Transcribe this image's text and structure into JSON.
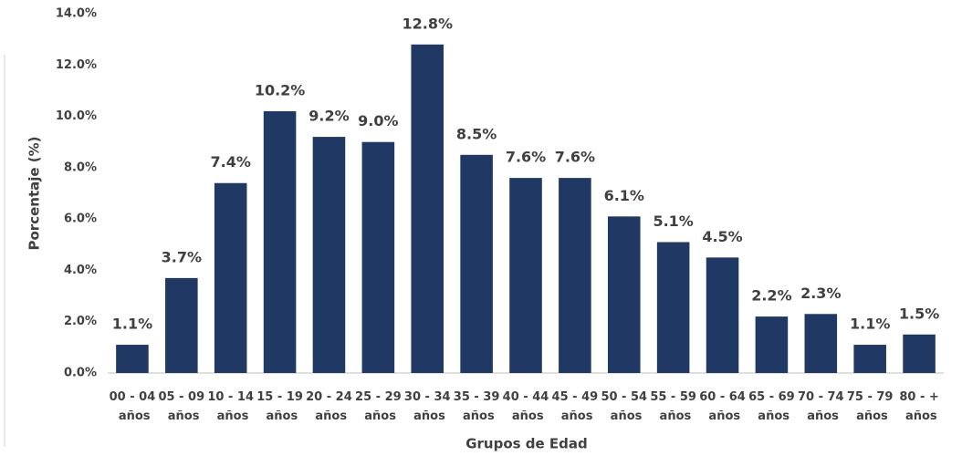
{
  "chart_data": {
    "type": "bar",
    "x_label": "Grupos de Edad",
    "y_label": "Porcentaje (%)",
    "categories": [
      "00 - 04 años",
      "05 - 09 años",
      "10 - 14 años",
      "15 - 19 años",
      "20 - 24 años",
      "25 - 29 años",
      "30 - 34 años",
      "35 - 39 años",
      "40 - 44 años",
      "45 - 49 años",
      "50 - 54 años",
      "55 - 59 años",
      "60 - 64 años",
      "65 - 69 años",
      "70 - 74 años",
      "75 - 79 años",
      "80 - + años"
    ],
    "values": [
      1.1,
      3.7,
      7.4,
      10.2,
      9.2,
      9.0,
      12.8,
      8.5,
      7.6,
      7.6,
      6.1,
      5.1,
      4.5,
      2.2,
      2.3,
      1.1,
      1.5
    ],
    "value_labels": [
      "1.1%",
      "3.7%",
      "7.4%",
      "10.2%",
      "9.2%",
      "9.0%",
      "12.8%",
      "8.5%",
      "7.6%",
      "7.6%",
      "6.1%",
      "5.1%",
      "4.5%",
      "2.2%",
      "2.3%",
      "1.1%",
      "1.5%"
    ],
    "color": "#203864",
    "ylim": [
      0,
      14
    ],
    "yticks": [
      {
        "value": 0,
        "label": "0.0%"
      },
      {
        "value": 2,
        "label": "2.0%"
      },
      {
        "value": 4,
        "label": "4.0%"
      },
      {
        "value": 6,
        "label": "6.0%"
      },
      {
        "value": 8,
        "label": "8.0%"
      },
      {
        "value": 10,
        "label": "10.0%"
      },
      {
        "value": 12,
        "label": "12.0%"
      },
      {
        "value": 14,
        "label": "14.0%"
      }
    ],
    "grid": false
  }
}
